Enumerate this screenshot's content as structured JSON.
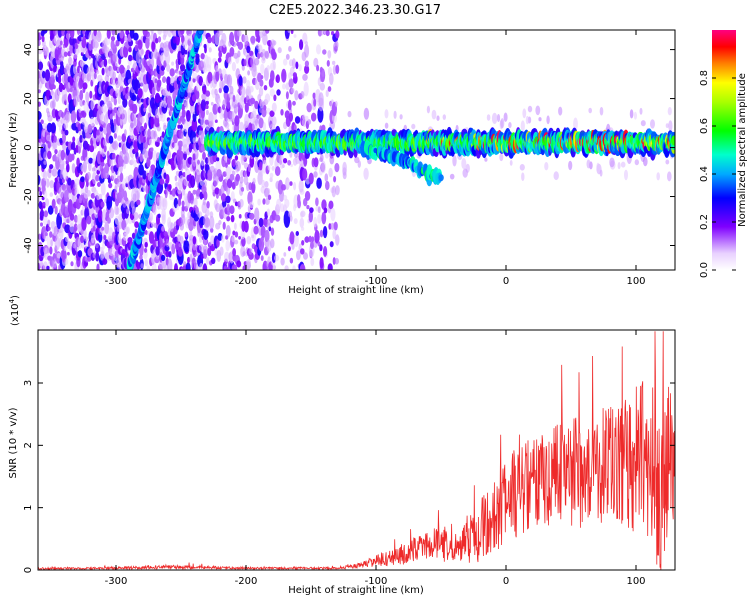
{
  "title": "C2E5.2022.346.23.30.G17",
  "chart_data": [
    {
      "type": "heatmap",
      "name": "spectrogram",
      "xlabel": "Height of straight line (km)",
      "ylabel": "Frequency (Hz)",
      "xlim": [
        -360,
        130
      ],
      "ylim": [
        -50,
        48
      ],
      "xticks": [
        -300,
        -200,
        -100,
        0,
        100
      ],
      "yticks": [
        -40,
        -20,
        0,
        20,
        40
      ],
      "colorbar": {
        "label": "Normalized spectral amplitude",
        "range": [
          0,
          1
        ],
        "ticks": [
          0.0,
          0.2,
          0.4,
          0.6,
          0.8
        ],
        "colormap": "rainbow"
      },
      "features": [
        {
          "name": "steep-track",
          "x_at_ymin": -290,
          "x_at_ymax": -235,
          "description": "line from (-290,-50) to (-235,48)"
        },
        {
          "name": "center-band",
          "x_range": [
            -230,
            130
          ],
          "center_freq": 2,
          "peak_amplitude": 1.0
        },
        {
          "name": "descending-branch",
          "points": [
            [
              -110,
              0
            ],
            [
              -80,
              -5
            ],
            [
              -50,
              -13
            ]
          ]
        },
        {
          "name": "noise-region",
          "x_range": [
            -360,
            -130
          ]
        }
      ]
    },
    {
      "type": "line",
      "name": "snr",
      "xlabel": "Height of straight line (km)",
      "ylabel": "SNR (10 * v/v)",
      "multiplier": "(x10",
      "multiplier_exp": "4",
      "multiplier_close": ")",
      "xlim": [
        -360,
        130
      ],
      "ylim": [
        0,
        3.85
      ],
      "xticks": [
        -300,
        -200,
        -100,
        0,
        100
      ],
      "yticks": [
        0,
        1,
        2,
        3
      ],
      "series": [
        {
          "name": "snr",
          "color": "#ee2a2a",
          "envelope_x": [
            -360,
            -300,
            -260,
            -200,
            -130,
            -110,
            -100,
            -80,
            -60,
            -50,
            -40,
            -20,
            0,
            20,
            40,
            60,
            80,
            100,
            110,
            120,
            130
          ],
          "envelope_mean": [
            0.02,
            0.03,
            0.05,
            0.03,
            0.03,
            0.08,
            0.15,
            0.25,
            0.4,
            0.45,
            0.3,
            0.6,
            1.1,
            1.4,
            1.6,
            1.6,
            1.7,
            1.8,
            1.7,
            1.6,
            1.6
          ],
          "envelope_amp": [
            0.02,
            0.02,
            0.04,
            0.02,
            0.02,
            0.06,
            0.12,
            0.2,
            0.25,
            0.4,
            0.2,
            0.6,
            0.8,
            0.9,
            1.0,
            1.1,
            1.2,
            1.4,
            1.7,
            2.0,
            1.4
          ]
        }
      ]
    }
  ],
  "colors": {
    "axis": "#000000",
    "snr_line": "#ee2a2a"
  }
}
